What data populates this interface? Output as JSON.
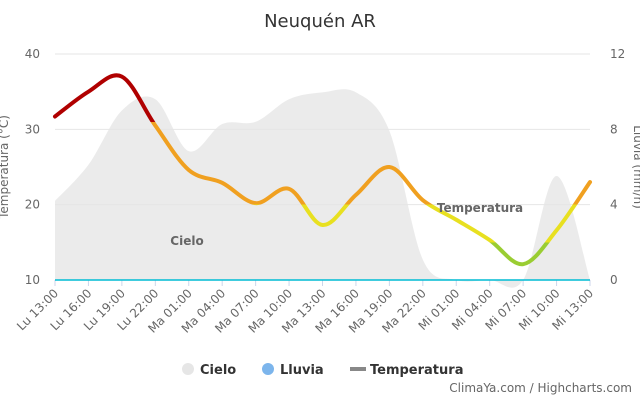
{
  "chart_data": {
    "type": "line",
    "title": "Neuquén AR",
    "y_label": "Temperatura (°C)",
    "y2_label": "Lluvia (mm/h)",
    "credit": "ClimaYa.com / Highcharts.com",
    "categories": [
      "Lu 13:00",
      "Lu 16:00",
      "Lu 19:00",
      "Lu 22:00",
      "Ma 01:00",
      "Ma 04:00",
      "Ma 07:00",
      "Ma 10:00",
      "Ma 13:00",
      "Ma 16:00",
      "Ma 19:00",
      "Ma 22:00",
      "Mi 01:00",
      "Mi 04:00",
      "Mi 07:00",
      "Mi 10:00",
      "Mi 13:00"
    ],
    "ylim": [
      10,
      40
    ],
    "yticks": [
      10,
      20,
      30,
      40
    ],
    "y2lim": [
      0,
      12
    ],
    "y2ticks": [
      0,
      4,
      8,
      12
    ],
    "y3lim": [
      0,
      100
    ],
    "grid": true,
    "series": [
      {
        "name": "Cielo",
        "color": "#e6e6e6",
        "axis": "y3",
        "label": "Cielo",
        "values": [
          35,
          51,
          75,
          80,
          57,
          69,
          70,
          80,
          83,
          83,
          66,
          9,
          0,
          0,
          0,
          46,
          0
        ]
      },
      {
        "name": "Lluvia",
        "color": "#00bcd4",
        "legend_color": "#7cb5ec",
        "axis": "y2",
        "values": [
          0,
          0,
          0,
          0,
          0,
          0,
          0,
          0,
          0,
          0,
          0,
          0,
          0,
          0,
          0,
          0,
          0
        ]
      },
      {
        "name": "Temperatura",
        "color": "#888888",
        "label": "Temperatura",
        "values": [
          31.7,
          35,
          37,
          30.5,
          24.6,
          22.9,
          20.2,
          22.1,
          17.3,
          21.3,
          25,
          20.6,
          18,
          15.3,
          12.1,
          16.6,
          23
        ],
        "zones": [
          {
            "max": 15,
            "color": "#9acd32"
          },
          {
            "max": 20,
            "color": "#e8e020"
          },
          {
            "max": 31,
            "color": "#f0a020"
          },
          {
            "max": 40,
            "color": "#b00000"
          }
        ]
      }
    ]
  }
}
